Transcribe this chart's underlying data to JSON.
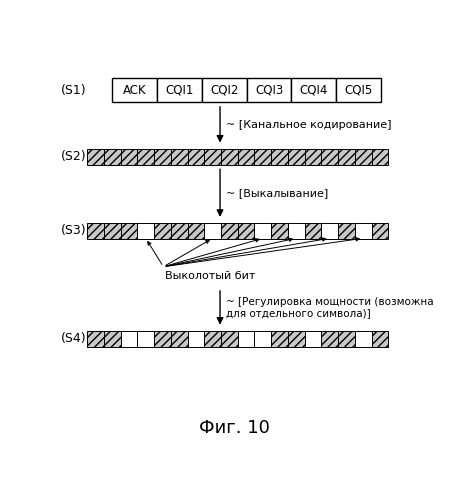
{
  "title": "Фиг. 10",
  "bg_color": "#ffffff",
  "s1_label": "(S1)",
  "s2_label": "(S2)",
  "s3_label": "(S3)",
  "s4_label": "(S4)",
  "s1_items": [
    "ACK",
    "CQI1",
    "CQI2",
    "CQI3",
    "CQI4",
    "CQI5"
  ],
  "step1_text": "~ [Канальное кодирование]",
  "step2_text": "~ [Выкалывание]",
  "step3_text": "~ [Регулировка мощности (возможна\nдля отдельного символа)]",
  "punctured_label": "Выколотый бит",
  "hatch_pattern": "////",
  "box_facecolor": "#c8c8c8",
  "box_edgecolor": "#000000",
  "s2_n_cells": 18,
  "s3_pattern": [
    1,
    1,
    1,
    0,
    1,
    1,
    1,
    0,
    1,
    1,
    0,
    1,
    0,
    1,
    0,
    1,
    0,
    1
  ],
  "s4_pattern": [
    1,
    1,
    0,
    0,
    1,
    1,
    0,
    1,
    1,
    0,
    0,
    1,
    1,
    0,
    1,
    1,
    0,
    1
  ]
}
